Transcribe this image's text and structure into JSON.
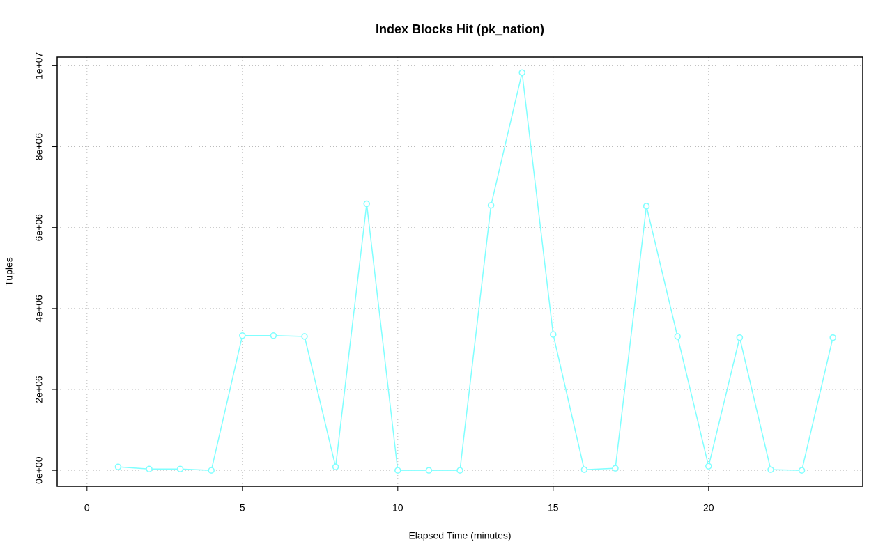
{
  "chart_data": {
    "type": "line",
    "title": "Index Blocks Hit (pk_nation)",
    "x_label": "Elapsed Time (minutes)",
    "y_label": "Tuples",
    "x": [
      1,
      2,
      3,
      4,
      5,
      6,
      7,
      8,
      9,
      10,
      11,
      12,
      13,
      14,
      15,
      16,
      17,
      18,
      19,
      20,
      21,
      22,
      23,
      24
    ],
    "series": [
      {
        "name": "pk_nation",
        "color": "#7fffff",
        "values": [
          86000,
          34000,
          34000,
          0,
          3330000,
          3330000,
          3310000,
          86000,
          6590000,
          0,
          0,
          0,
          6550000,
          9830000,
          3360000,
          17000,
          52000,
          6530000,
          3310000,
          103000,
          3280000,
          17000,
          0,
          3280000
        ]
      }
    ],
    "xlim": [
      -0.96,
      24.96
    ],
    "xticks": [
      0,
      5,
      10,
      15,
      20
    ],
    "ylim": [
      -393000,
      10213000
    ],
    "yticks": [
      {
        "value": 0,
        "label": "0e+00"
      },
      {
        "value": 2000000,
        "label": "2e+06"
      },
      {
        "value": 4000000,
        "label": "4e+06"
      },
      {
        "value": 6000000,
        "label": "6e+06"
      },
      {
        "value": 8000000,
        "label": "8e+06"
      },
      {
        "value": 10000000,
        "label": "1e+07"
      }
    ],
    "grid": true
  }
}
